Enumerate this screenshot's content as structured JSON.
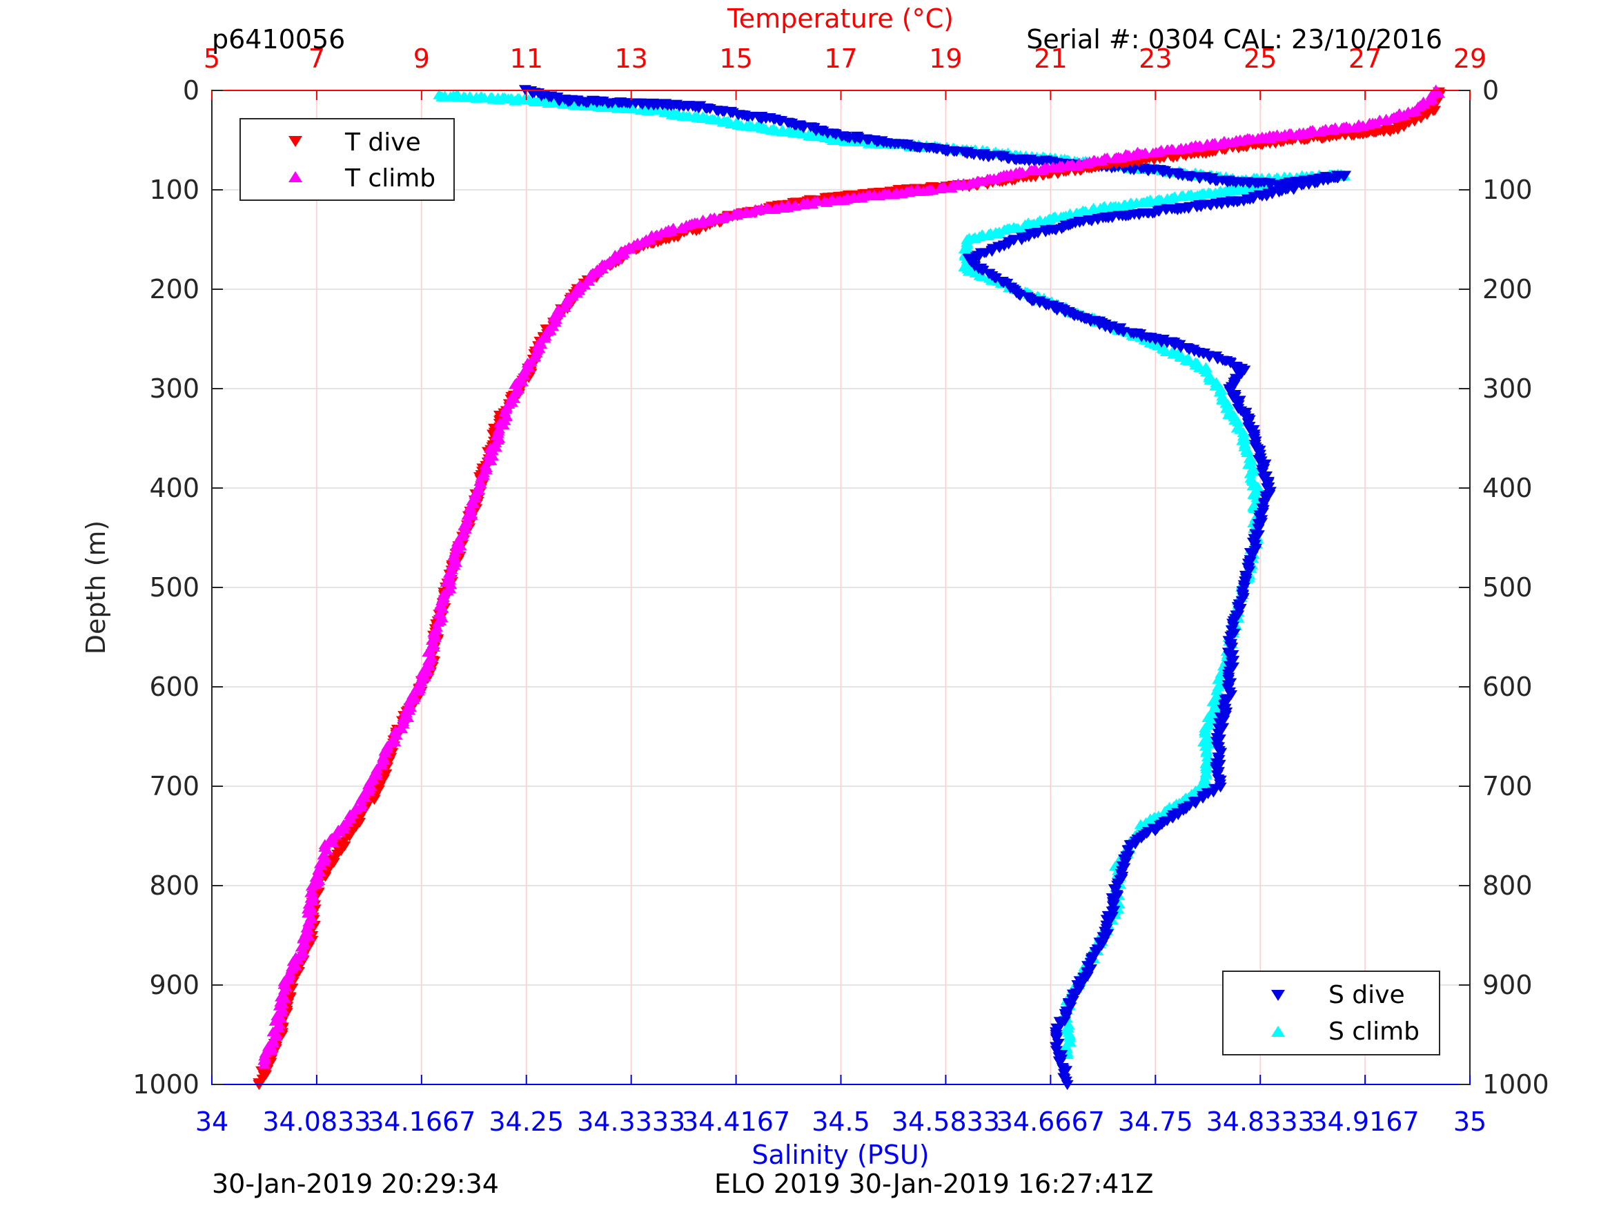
{
  "header": {
    "profile_id": "p6410056",
    "serial_label": "Serial #: 0304  CAL: 23/10/2016"
  },
  "footer": {
    "plot_time": "30-Jan-2019 20:29:34",
    "mission": "ELO 2019 30-Jan-2019 16:27:41Z"
  },
  "colors": {
    "t_dive": "#ff0000",
    "t_climb": "#ff00ff",
    "s_dive": "#0000e6",
    "s_climb": "#00ffff",
    "temp_axis": "#ff0000",
    "sal_axis": "#0000ff",
    "depth_axis": "#262626"
  },
  "chart_data": {
    "type": "scatter",
    "ylabel": "Depth (m)",
    "x_top_label": "Temperature (°C)",
    "x_bottom_label": "Salinity (PSU)",
    "y_range": [
      0,
      1000
    ],
    "y_reversed": true,
    "temp_range": [
      5,
      29
    ],
    "sal_range": [
      34,
      35
    ],
    "y_ticks": [
      "0",
      "100",
      "200",
      "300",
      "400",
      "500",
      "600",
      "700",
      "800",
      "900",
      "1000"
    ],
    "temp_ticks": [
      "5",
      "7",
      "9",
      "11",
      "13",
      "15",
      "17",
      "19",
      "21",
      "23",
      "25",
      "27",
      "29"
    ],
    "sal_ticks": [
      "34",
      "34.0833",
      "34.1667",
      "34.25",
      "34.3333",
      "34.4167",
      "34.5",
      "34.5833",
      "34.6667",
      "34.75",
      "34.8333",
      "34.9167",
      "35"
    ],
    "grid": "vertical temperature gridlines and horizontal depth gridlines",
    "legend_temperature": {
      "placement": "top-left",
      "entries": [
        "T dive",
        "T climb"
      ]
    },
    "legend_salinity": {
      "placement": "bottom-right",
      "entries": [
        "S dive",
        "S climb"
      ]
    },
    "series": [
      {
        "name": "T dive",
        "axis": "temperature",
        "marker": "triangle-down",
        "points": [
          [
            28.4,
            0
          ],
          [
            28.3,
            20
          ],
          [
            27.5,
            40
          ],
          [
            25.5,
            50
          ],
          [
            23.5,
            65
          ],
          [
            22,
            75
          ],
          [
            20.8,
            85
          ],
          [
            19.5,
            95
          ],
          [
            18.2,
            100
          ],
          [
            16.5,
            110
          ],
          [
            15,
            125
          ],
          [
            14.2,
            140
          ],
          [
            13,
            160
          ],
          [
            12.5,
            180
          ],
          [
            12,
            200
          ],
          [
            11.3,
            250
          ],
          [
            11,
            290
          ],
          [
            10.5,
            330
          ],
          [
            10.2,
            380
          ],
          [
            10,
            420
          ],
          [
            9.6,
            480
          ],
          [
            9.3,
            540
          ],
          [
            9.2,
            580
          ],
          [
            8.6,
            640
          ],
          [
            8.2,
            700
          ],
          [
            7.6,
            750
          ],
          [
            7,
            800
          ],
          [
            6.9,
            850
          ],
          [
            6.5,
            900
          ],
          [
            6.3,
            950
          ],
          [
            5.9,
            1000
          ]
        ]
      },
      {
        "name": "T climb",
        "axis": "temperature",
        "marker": "triangle-up",
        "points": [
          [
            28.4,
            0
          ],
          [
            28,
            20
          ],
          [
            27,
            35
          ],
          [
            25.5,
            45
          ],
          [
            24,
            55
          ],
          [
            22.5,
            65
          ],
          [
            21.5,
            75
          ],
          [
            20.5,
            82
          ],
          [
            19.8,
            90
          ],
          [
            19,
            98
          ],
          [
            17.5,
            107
          ],
          [
            16.5,
            113
          ],
          [
            15.5,
            120
          ],
          [
            14.5,
            130
          ],
          [
            13.5,
            145
          ],
          [
            12.9,
            160
          ],
          [
            12.3,
            185
          ],
          [
            11.8,
            210
          ],
          [
            11.2,
            260
          ],
          [
            10.8,
            300
          ],
          [
            10.5,
            340
          ],
          [
            10.1,
            400
          ],
          [
            9.7,
            460
          ],
          [
            9.4,
            520
          ],
          [
            9.1,
            580
          ],
          [
            8.7,
            630
          ],
          [
            8.2,
            680
          ],
          [
            7.8,
            720
          ],
          [
            7.2,
            760
          ],
          [
            6.9,
            810
          ],
          [
            6.8,
            850
          ],
          [
            6.4,
            900
          ],
          [
            6.2,
            950
          ],
          [
            6,
            980
          ]
        ]
      },
      {
        "name": "S dive",
        "axis": "salinity",
        "marker": "triangle-down",
        "points": [
          [
            34.25,
            0
          ],
          [
            34.28,
            10
          ],
          [
            34.38,
            15
          ],
          [
            34.45,
            30
          ],
          [
            34.5,
            45
          ],
          [
            34.58,
            60
          ],
          [
            34.65,
            70
          ],
          [
            34.75,
            80
          ],
          [
            34.8,
            90
          ],
          [
            34.85,
            95
          ],
          [
            34.9,
            85
          ],
          [
            34.82,
            110
          ],
          [
            34.7,
            130
          ],
          [
            34.65,
            145
          ],
          [
            34.6,
            170
          ],
          [
            34.65,
            210
          ],
          [
            34.72,
            240
          ],
          [
            34.78,
            260
          ],
          [
            34.82,
            280
          ],
          [
            34.81,
            300
          ],
          [
            34.83,
            350
          ],
          [
            34.84,
            400
          ],
          [
            34.83,
            450
          ],
          [
            34.82,
            500
          ],
          [
            34.81,
            550
          ],
          [
            34.81,
            600
          ],
          [
            34.8,
            650
          ],
          [
            34.8,
            700
          ],
          [
            34.73,
            760
          ],
          [
            34.72,
            800
          ],
          [
            34.71,
            850
          ],
          [
            34.69,
            900
          ],
          [
            34.67,
            950
          ],
          [
            34.68,
            1000
          ]
        ]
      },
      {
        "name": "S climb",
        "axis": "salinity",
        "marker": "triangle-up",
        "points": [
          [
            34.18,
            5
          ],
          [
            34.25,
            10
          ],
          [
            34.35,
            20
          ],
          [
            34.45,
            40
          ],
          [
            34.5,
            50
          ],
          [
            34.6,
            60
          ],
          [
            34.75,
            80
          ],
          [
            34.82,
            90
          ],
          [
            34.9,
            85
          ],
          [
            34.7,
            120
          ],
          [
            34.6,
            150
          ],
          [
            34.6,
            180
          ],
          [
            34.68,
            220
          ],
          [
            34.74,
            250
          ],
          [
            34.79,
            280
          ],
          [
            34.8,
            300
          ],
          [
            34.82,
            350
          ],
          [
            34.83,
            400
          ],
          [
            34.83,
            450
          ],
          [
            34.82,
            500
          ],
          [
            34.81,
            550
          ],
          [
            34.8,
            600
          ],
          [
            34.79,
            650
          ],
          [
            34.79,
            700
          ],
          [
            34.74,
            740
          ],
          [
            34.72,
            780
          ],
          [
            34.72,
            820
          ],
          [
            34.7,
            870
          ],
          [
            34.68,
            920
          ],
          [
            34.68,
            970
          ]
        ]
      }
    ]
  }
}
